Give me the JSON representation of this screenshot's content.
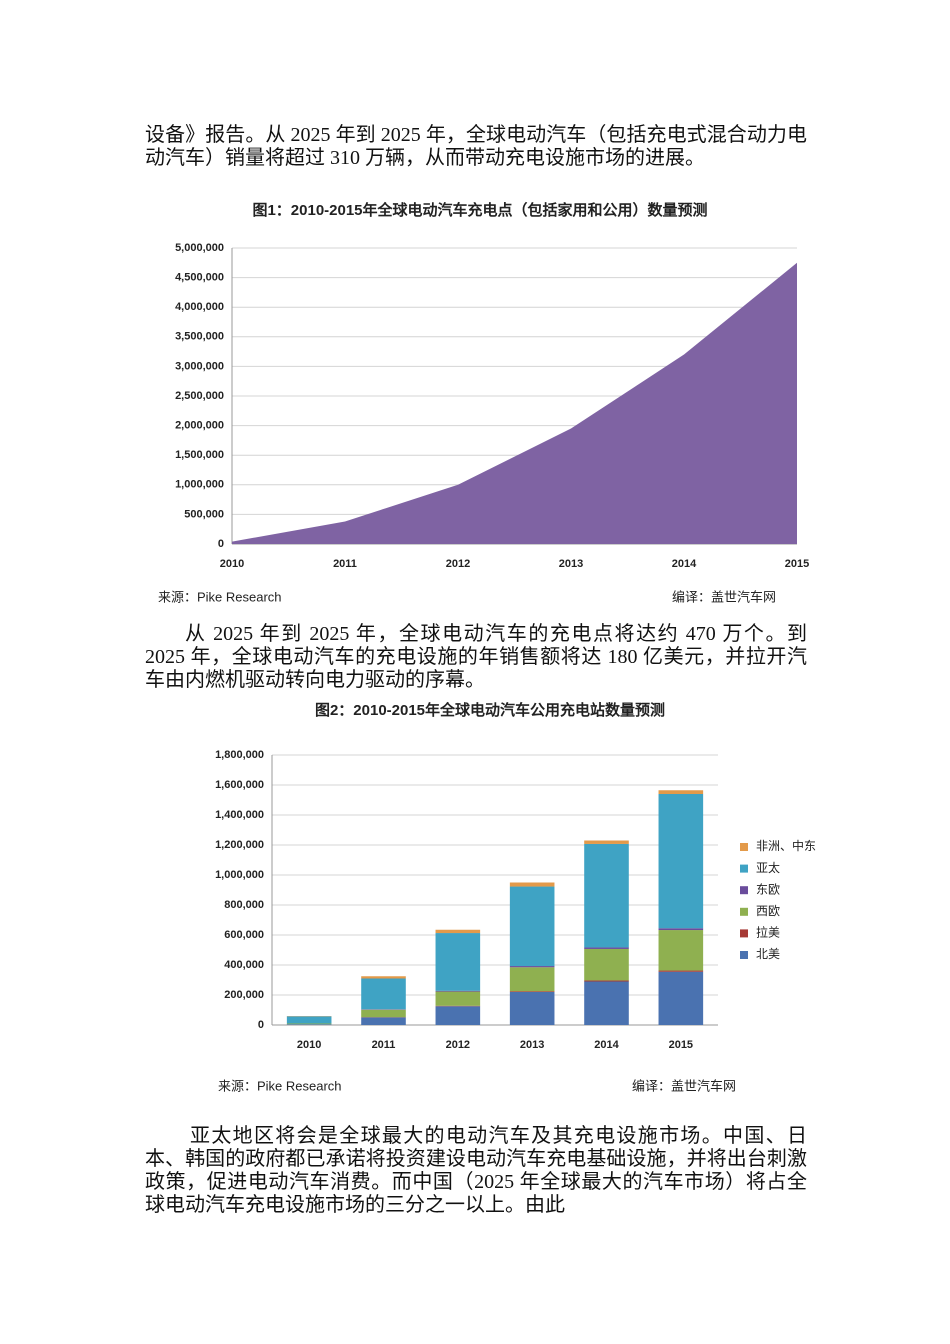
{
  "paragraphs": [
    "设备》报告。从 2025 年到 2025 年，全球电动汽车（包括充电式混合动力电动汽车）销量将超过 310 万辆，从而带动充电设施市场的进展。",
    "从 2025 年到 2025 年，全球电动汽车的充电点将达约 470 万个。到 2025 年，全球电动汽车的充电设施的年销售额将达 180 亿美元，并拉开汽车由内燃机驱动转向电力驱动的序幕。",
    "亚太地区将会是全球最大的电动汽车及其充电设施市场。中国、日本、韩国的政府都已承诺将投资建设电动汽车充电基础设施，并将出台刺激政策，促进电动汽车消费。而中国（2025 年全球最大的汽车市场）将占全球电动汽车充电设施市场的三分之一以上。由此"
  ],
  "chart_data": [
    {
      "type": "area",
      "title": "图1：2010-2015年全球电动汽车充电点（包括家用和公用）数量预测",
      "categories": [
        "2010",
        "2011",
        "2012",
        "2013",
        "2014",
        "2015"
      ],
      "values": [
        40000,
        380000,
        1000000,
        1950000,
        3200000,
        4750000
      ],
      "color": "#7f63a3",
      "ylim": [
        0,
        5000000
      ],
      "yticks": [
        0,
        {
          "value": 500000,
          "label": "500,000"
        },
        {
          "value": 1000000,
          "label": "1,000,000"
        },
        {
          "value": 1500000,
          "label": "1,500,000"
        },
        {
          "value": 2000000,
          "label": "2,000,000"
        },
        {
          "value": 2500000,
          "label": "2,500,000"
        },
        {
          "value": 3000000,
          "label": "3,000,000"
        },
        {
          "value": 3500000,
          "label": "3,500,000"
        },
        {
          "value": 4000000,
          "label": "4,000,000"
        },
        {
          "value": 4500000,
          "label": "4,500,000"
        },
        {
          "value": 5000000,
          "label": "5,000,000"
        }
      ],
      "grid": true,
      "source": "来源：Pike Research",
      "credit": "编译：盖世汽车网"
    },
    {
      "type": "stacked-bar",
      "title": "图2：2010-2015年全球电动汽车公用充电站数量预测",
      "categories": [
        "2010",
        "2011",
        "2012",
        "2013",
        "2014",
        "2015"
      ],
      "series": [
        {
          "name": "北美",
          "color": "#4a72b0",
          "values": [
            5000,
            50000,
            125000,
            220000,
            290000,
            355000
          ]
        },
        {
          "name": "拉美",
          "color": "#a63a35",
          "values": [
            0,
            2000,
            3000,
            5000,
            7000,
            8000
          ]
        },
        {
          "name": "西欧",
          "color": "#8fb050",
          "values": [
            5000,
            50000,
            95000,
            160000,
            210000,
            270000
          ]
        },
        {
          "name": "东欧",
          "color": "#6a4c9c",
          "values": [
            0,
            3000,
            5000,
            8000,
            10000,
            12000
          ]
        },
        {
          "name": "亚太",
          "color": "#3fa3c4",
          "values": [
            48000,
            205000,
            385000,
            530000,
            690000,
            895000
          ]
        },
        {
          "name": "非洲、中东",
          "color": "#e39a4a",
          "values": [
            2000,
            15000,
            22000,
            27000,
            23000,
            25000
          ]
        }
      ],
      "ylim": [
        0,
        1800000
      ],
      "yticks": [
        0,
        {
          "value": 200000,
          "label": "200,000"
        },
        {
          "value": 400000,
          "label": "400,000"
        },
        {
          "value": 600000,
          "label": "600,000"
        },
        {
          "value": 800000,
          "label": "800,000"
        },
        {
          "value": 1000000,
          "label": "1,000,000"
        },
        {
          "value": 1200000,
          "label": "1,200,000"
        },
        {
          "value": 1400000,
          "label": "1,400,000"
        },
        {
          "value": 1600000,
          "label": "1,600,000"
        },
        {
          "value": 1800000,
          "label": "1,800,000"
        }
      ],
      "grid": true,
      "legend": "right",
      "source": "来源：Pike Research",
      "credit": "编译：盖世汽车网"
    }
  ]
}
